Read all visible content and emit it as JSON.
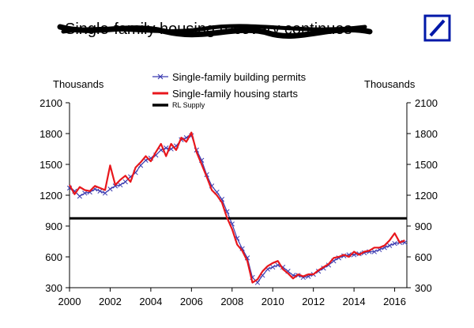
{
  "header": {
    "title": "Single-family housing recovery continues",
    "logo_name": "Deutsche Bank logo",
    "logo_color": "#0018a8"
  },
  "chart_data": {
    "type": "line",
    "title": "Single-family housing recovery continues",
    "ylabel_left": "Thousands",
    "ylabel_right": "Thousands",
    "xlim": [
      2000,
      2016.6
    ],
    "ylim": [
      300,
      2100
    ],
    "yticks": [
      300,
      600,
      900,
      1200,
      1500,
      1800,
      2100
    ],
    "xticks": [
      2000,
      2002,
      2004,
      2006,
      2008,
      2010,
      2012,
      2014,
      2016
    ],
    "legend": {
      "placement": "top-center",
      "entries": [
        {
          "label": "Single-family building permits",
          "series": "permits"
        },
        {
          "label": "Single-family housing starts",
          "series": "starts"
        },
        {
          "label": "RL Supply",
          "series": "supply"
        }
      ]
    },
    "series": [
      {
        "id": "permits",
        "name": "Single-family building permits",
        "color": "#3b3bb0",
        "marker": "x",
        "x": [
          2000.0,
          2000.25,
          2000.5,
          2000.75,
          2001.0,
          2001.25,
          2001.5,
          2001.75,
          2002.0,
          2002.25,
          2002.5,
          2002.75,
          2003.0,
          2003.25,
          2003.5,
          2003.75,
          2004.0,
          2004.25,
          2004.5,
          2004.75,
          2005.0,
          2005.25,
          2005.5,
          2005.75,
          2006.0,
          2006.25,
          2006.5,
          2006.75,
          2007.0,
          2007.25,
          2007.5,
          2007.75,
          2008.0,
          2008.25,
          2008.5,
          2008.75,
          2009.0,
          2009.25,
          2009.5,
          2009.75,
          2010.0,
          2010.25,
          2010.5,
          2010.75,
          2011.0,
          2011.25,
          2011.5,
          2011.75,
          2012.0,
          2012.25,
          2012.5,
          2012.75,
          2013.0,
          2013.25,
          2013.5,
          2013.75,
          2014.0,
          2014.25,
          2014.5,
          2014.75,
          2015.0,
          2015.25,
          2015.5,
          2015.75,
          2016.0,
          2016.25,
          2016.5
        ],
        "values": [
          1270,
          1240,
          1190,
          1220,
          1230,
          1260,
          1240,
          1220,
          1260,
          1290,
          1300,
          1330,
          1380,
          1420,
          1490,
          1540,
          1560,
          1590,
          1640,
          1660,
          1650,
          1680,
          1740,
          1760,
          1780,
          1640,
          1540,
          1400,
          1290,
          1230,
          1160,
          1040,
          920,
          780,
          680,
          590,
          400,
          350,
          420,
          480,
          500,
          520,
          500,
          460,
          420,
          420,
          400,
          410,
          430,
          460,
          490,
          520,
          560,
          590,
          610,
          620,
          620,
          630,
          640,
          650,
          650,
          670,
          690,
          710,
          730,
          740,
          740
        ]
      },
      {
        "id": "starts",
        "name": "Single-family housing starts",
        "color": "#e8171c",
        "marker": "none",
        "x": [
          2000.0,
          2000.25,
          2000.5,
          2000.75,
          2001.0,
          2001.25,
          2001.5,
          2001.75,
          2002.0,
          2002.25,
          2002.5,
          2002.75,
          2003.0,
          2003.25,
          2003.5,
          2003.75,
          2004.0,
          2004.25,
          2004.5,
          2004.75,
          2005.0,
          2005.25,
          2005.5,
          2005.75,
          2006.0,
          2006.25,
          2006.5,
          2006.75,
          2007.0,
          2007.25,
          2007.5,
          2007.75,
          2008.0,
          2008.25,
          2008.5,
          2008.75,
          2009.0,
          2009.25,
          2009.5,
          2009.75,
          2010.0,
          2010.25,
          2010.5,
          2010.75,
          2011.0,
          2011.25,
          2011.5,
          2011.75,
          2012.0,
          2012.25,
          2012.5,
          2012.75,
          2013.0,
          2013.25,
          2013.5,
          2013.75,
          2014.0,
          2014.25,
          2014.5,
          2014.75,
          2015.0,
          2015.25,
          2015.5,
          2015.75,
          2016.0,
          2016.25,
          2016.5
        ],
        "values": [
          1300,
          1210,
          1280,
          1250,
          1240,
          1290,
          1270,
          1250,
          1490,
          1300,
          1350,
          1390,
          1330,
          1470,
          1520,
          1580,
          1530,
          1620,
          1700,
          1580,
          1700,
          1640,
          1760,
          1720,
          1810,
          1620,
          1500,
          1380,
          1250,
          1200,
          1130,
          980,
          870,
          720,
          660,
          560,
          350,
          380,
          460,
          510,
          540,
          560,
          480,
          440,
          390,
          430,
          410,
          430,
          430,
          470,
          500,
          530,
          590,
          600,
          620,
          600,
          650,
          620,
          650,
          660,
          690,
          690,
          710,
          760,
          830,
          740,
          760
        ]
      },
      {
        "id": "supply",
        "name": "RL Supply",
        "color": "#000000",
        "marker": "none",
        "x": [
          2000.0,
          2016.6
        ],
        "values": [
          975,
          975
        ]
      }
    ]
  }
}
